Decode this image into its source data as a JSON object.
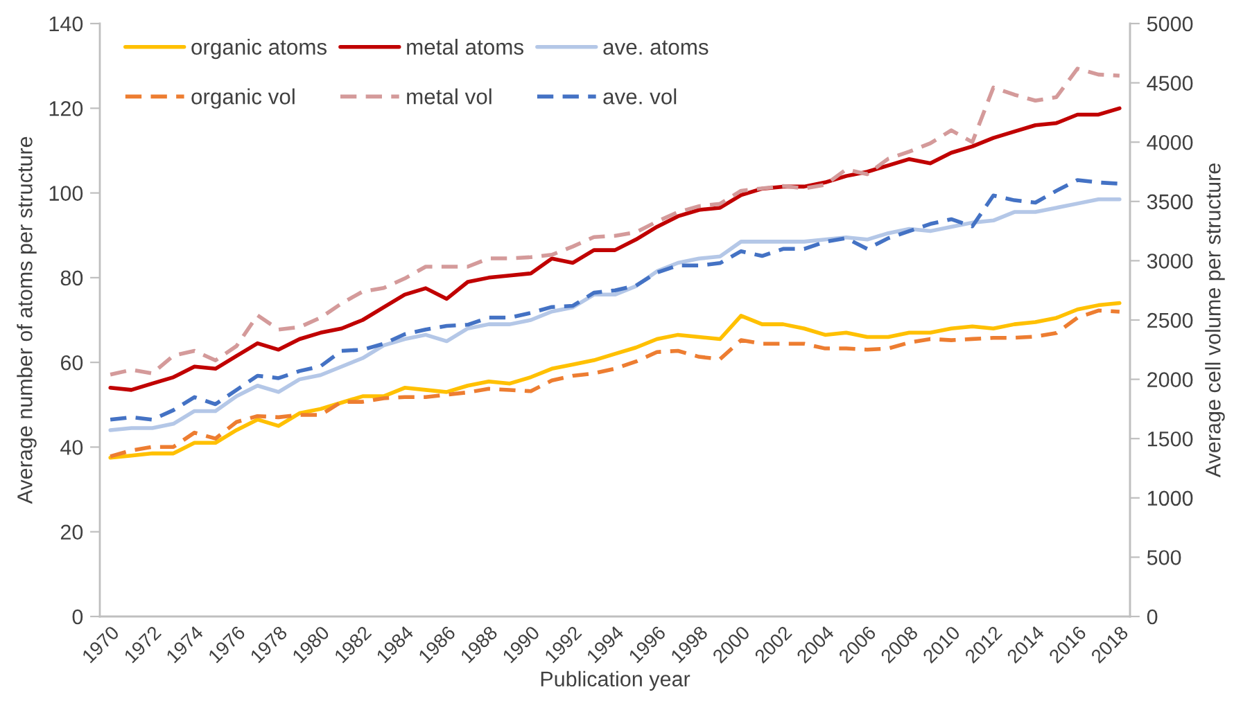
{
  "chart_data": {
    "type": "line",
    "xlabel": "Publication year",
    "ylabel": "Average number of atoms per structure",
    "y2label": "Average cell volume per structure",
    "legend": "top left",
    "categories": [
      "1970",
      null,
      "1972",
      null,
      "1974",
      null,
      "1976",
      null,
      "1978",
      null,
      "1980",
      null,
      "1982",
      null,
      "1984",
      null,
      "1986",
      null,
      "1988",
      null,
      "1990",
      null,
      "1992",
      null,
      "1994",
      null,
      "1996",
      null,
      "1998",
      null,
      "2000",
      null,
      "2002",
      null,
      "2004",
      null,
      "2006",
      null,
      "2008",
      null,
      "2010",
      null,
      "2012",
      null,
      "2014",
      null,
      "2016",
      null,
      "2018"
    ],
    "ylim": [
      0,
      140
    ],
    "yticks": [
      0,
      20,
      40,
      60,
      80,
      100,
      120,
      140
    ],
    "y2lim": [
      0,
      5000
    ],
    "y2ticks": [
      0,
      500,
      1000,
      1500,
      2000,
      2500,
      3000,
      3500,
      4000,
      4500,
      5000
    ],
    "series": [
      {
        "name": "organic atoms",
        "color": "#ffc000",
        "line_style": "solid",
        "values": [
          37.5,
          38,
          38.5,
          38.5,
          41,
          41,
          44,
          46.5,
          45,
          48,
          49,
          50.5,
          52,
          52,
          54,
          53.5,
          53,
          54.5,
          55.5,
          55,
          56.5,
          58.5,
          59.5,
          60.5,
          62,
          63.5,
          65.5,
          66.5,
          66,
          65.5,
          71,
          69,
          69,
          68,
          66.5,
          67,
          66,
          66,
          67,
          67,
          68,
          68.5,
          68,
          69,
          69.5,
          70.5,
          72.5,
          73.5,
          74
        ]
      },
      {
        "name": "metal atoms",
        "color": "#c00000",
        "line_style": "solid",
        "values": [
          54,
          53.5,
          55,
          56.5,
          59,
          58.5,
          61.5,
          64.5,
          63,
          65.5,
          67,
          68,
          70,
          73,
          76,
          77.5,
          75,
          79,
          80,
          80.5,
          81,
          84.5,
          83.5,
          86.5,
          86.5,
          89,
          92,
          94.5,
          96,
          96.5,
          99.5,
          101,
          101.5,
          101.5,
          102.5,
          104,
          105,
          106.5,
          108,
          107,
          109.5,
          111,
          113,
          114.5,
          116,
          116.5,
          118.5,
          118.5,
          120
        ]
      },
      {
        "name": "ave. atoms",
        "color": "#b4c7e7",
        "line_style": "solid",
        "values": [
          44,
          44.5,
          44.5,
          45.5,
          48.5,
          48.5,
          52,
          54.5,
          53,
          56,
          57,
          59,
          61,
          64,
          65.5,
          66.5,
          65,
          68,
          69,
          69,
          70,
          72,
          73,
          76,
          76,
          78,
          81.5,
          83.5,
          84.5,
          85,
          88.5,
          88.5,
          88.5,
          88.5,
          89,
          89.5,
          89,
          90.5,
          91.5,
          91,
          92,
          93,
          93.5,
          95.5,
          95.5,
          96.5,
          97.5,
          98.5,
          98.5
        ]
      },
      {
        "name": "organic vol",
        "color": "#ed7d31",
        "line_style": "dashed",
        "axis": "y2",
        "values": [
          1350,
          1400,
          1430,
          1430,
          1550,
          1500,
          1640,
          1690,
          1680,
          1700,
          1700,
          1810,
          1810,
          1840,
          1850,
          1850,
          1870,
          1890,
          1920,
          1910,
          1900,
          1990,
          2030,
          2050,
          2090,
          2150,
          2230,
          2240,
          2190,
          2170,
          2330,
          2300,
          2300,
          2300,
          2260,
          2260,
          2250,
          2260,
          2310,
          2340,
          2330,
          2340,
          2350,
          2350,
          2360,
          2390,
          2520,
          2580,
          2570
        ]
      },
      {
        "name": "metal vol",
        "color": "#d49a9a",
        "line_style": "dashed",
        "axis": "y2",
        "values": [
          2040,
          2080,
          2050,
          2200,
          2240,
          2160,
          2280,
          2540,
          2420,
          2440,
          2520,
          2640,
          2740,
          2770,
          2850,
          2950,
          2950,
          2950,
          3020,
          3020,
          3030,
          3050,
          3120,
          3200,
          3210,
          3240,
          3330,
          3410,
          3460,
          3480,
          3590,
          3610,
          3630,
          3610,
          3640,
          3770,
          3730,
          3860,
          3920,
          3990,
          4100,
          4000,
          4460,
          4400,
          4350,
          4380,
          4620,
          4570,
          4560
        ]
      },
      {
        "name": "ave. vol",
        "color": "#4472c4",
        "line_style": "dashed",
        "axis": "y2",
        "values": [
          1660,
          1680,
          1660,
          1740,
          1850,
          1790,
          1910,
          2030,
          2010,
          2070,
          2110,
          2240,
          2250,
          2300,
          2380,
          2420,
          2450,
          2460,
          2520,
          2520,
          2560,
          2610,
          2620,
          2730,
          2750,
          2790,
          2900,
          2960,
          2960,
          2980,
          3080,
          3040,
          3100,
          3100,
          3160,
          3190,
          3100,
          3190,
          3250,
          3310,
          3350,
          3290,
          3550,
          3510,
          3490,
          3590,
          3680,
          3660,
          3650
        ]
      }
    ]
  }
}
